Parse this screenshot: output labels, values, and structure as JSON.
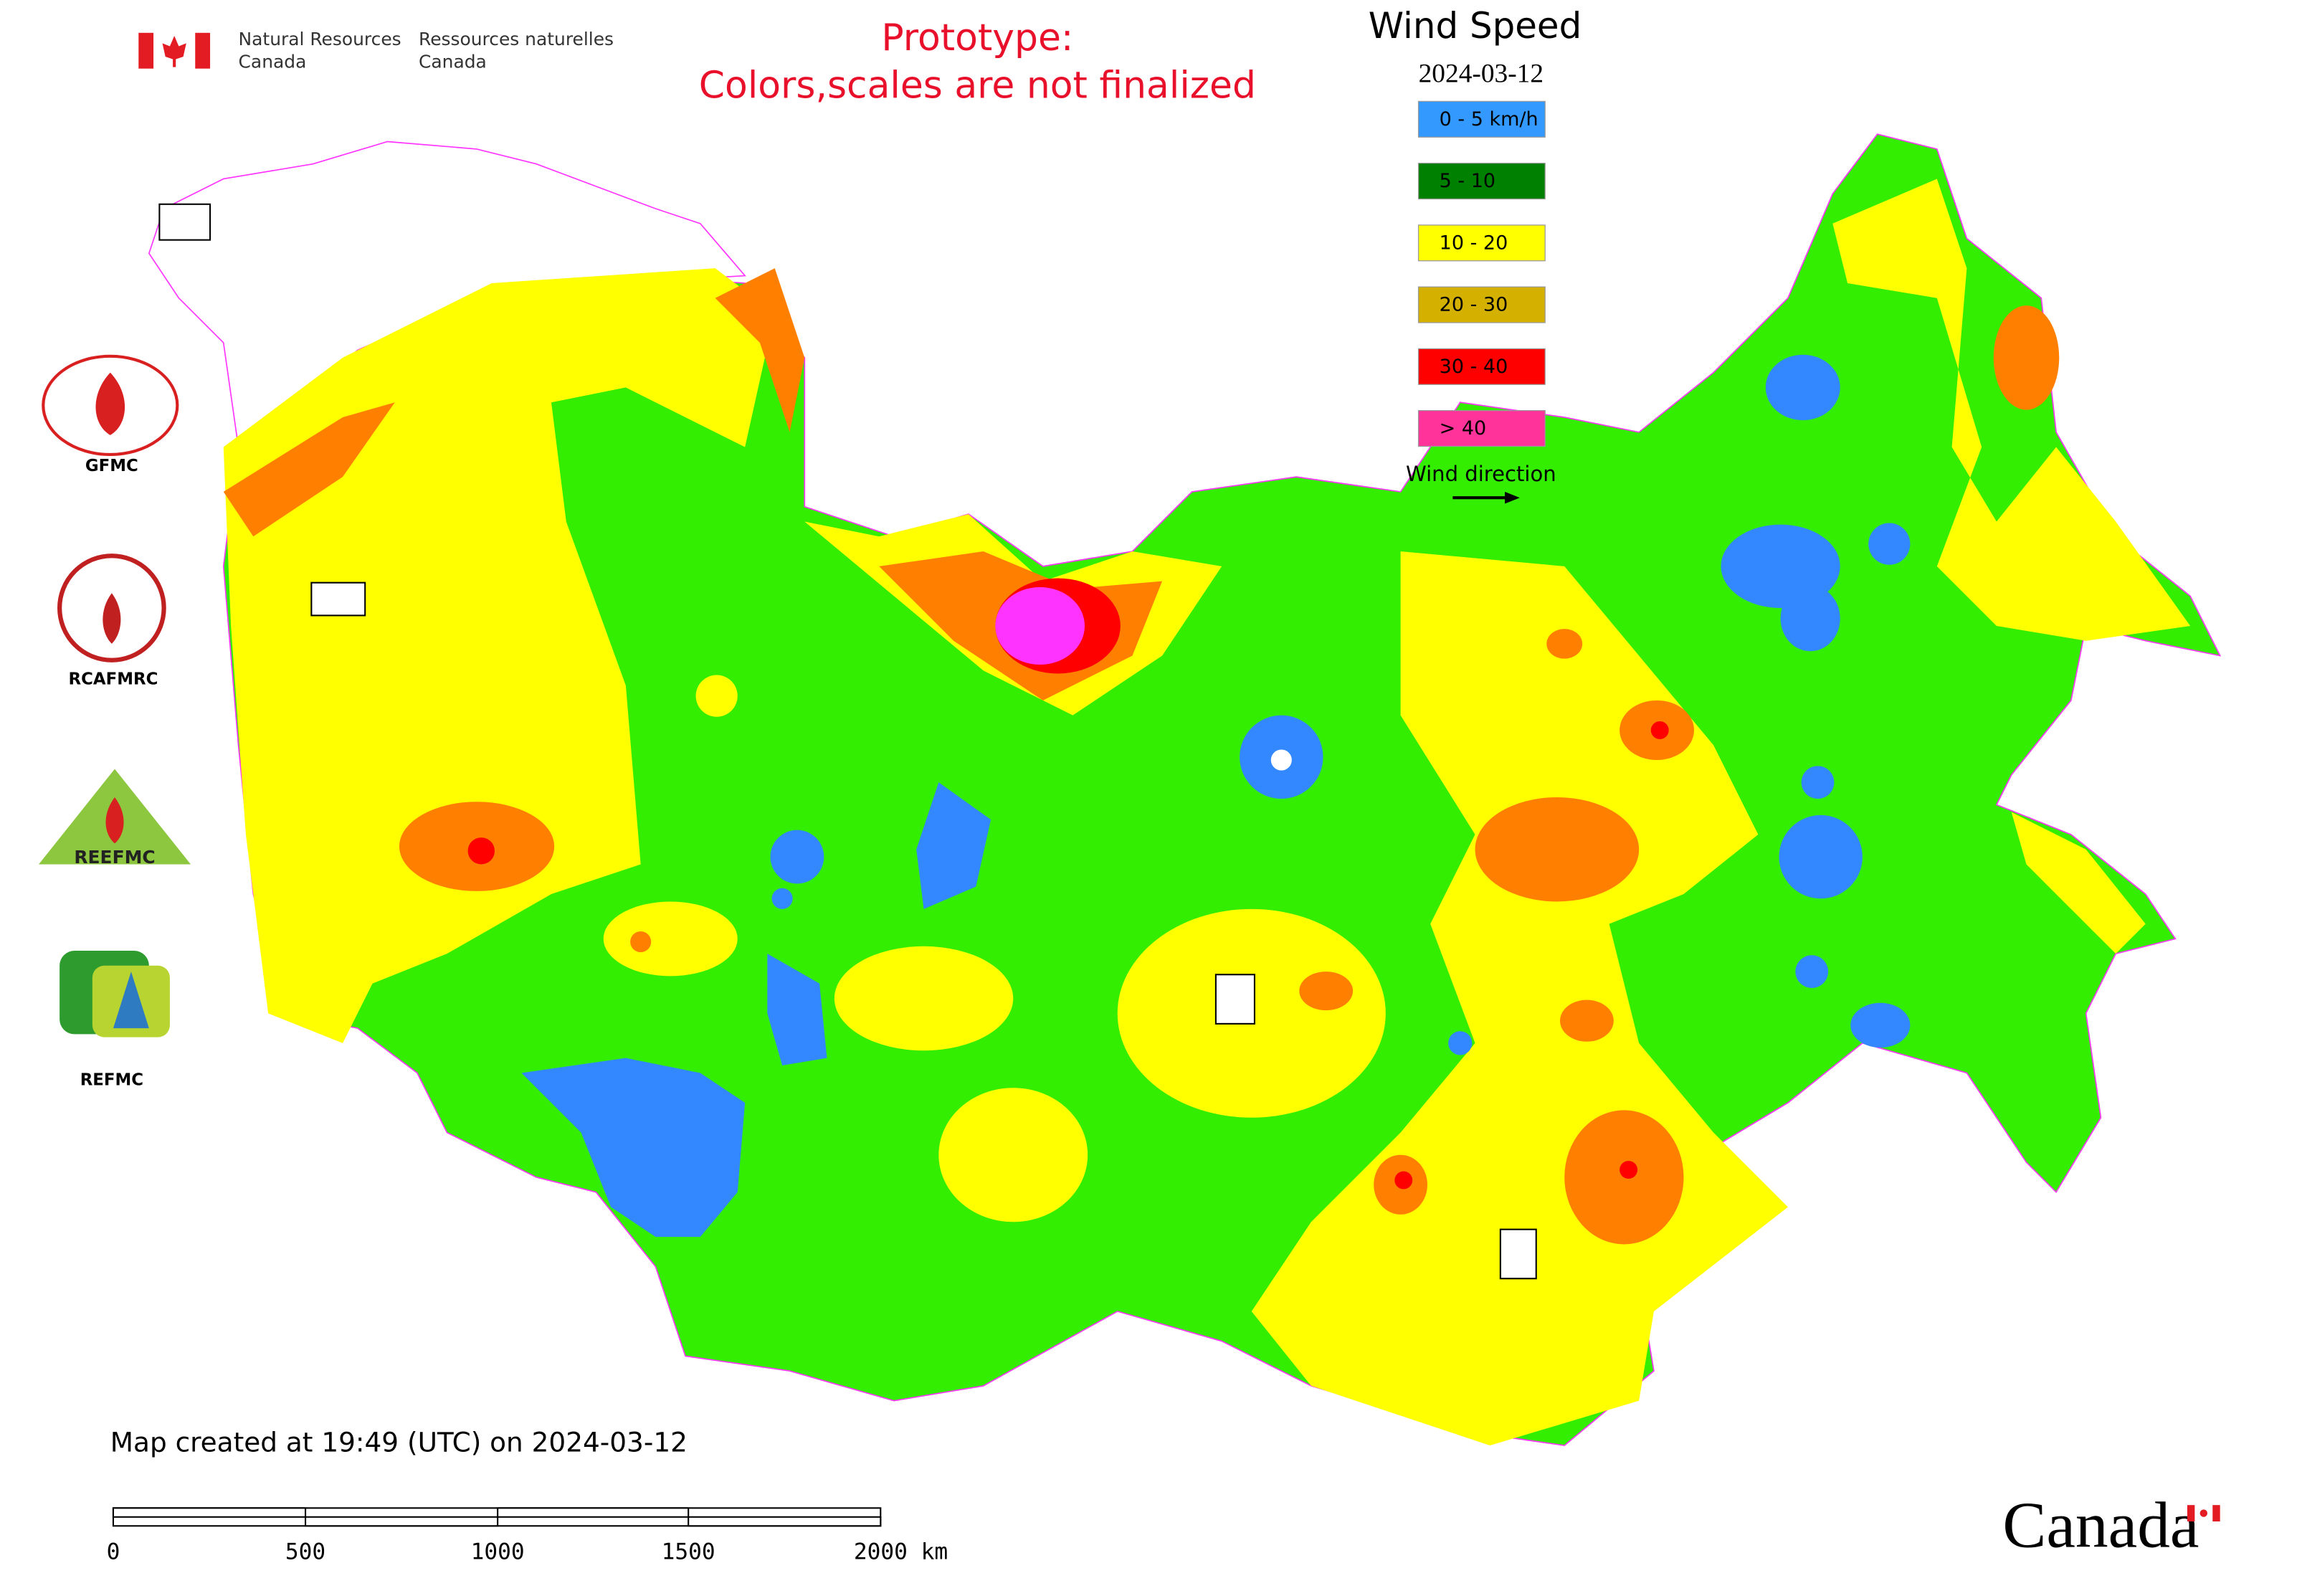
{
  "header": {
    "org_en_1": "Natural Resources",
    "org_en_2": "Canada",
    "org_fr_1": "Ressources naturelles",
    "org_fr_2": "Canada"
  },
  "notice": [
    "Prototype:",
    "Colors,scales are not finalized"
  ],
  "legend": {
    "title": "Wind Speed",
    "date": "2024-03-12",
    "items": [
      {
        "label": "0 - 5 km/h",
        "color": "#3399ff"
      },
      {
        "label": "5 - 10",
        "color": "#008000"
      },
      {
        "label": "10 - 20",
        "color": "#ffff00"
      },
      {
        "label": "20 - 30",
        "color": "#d4b000"
      },
      {
        "label": "30 - 40",
        "color": "#ff0000"
      },
      {
        "label": "> 40",
        "color": "#ff3399"
      }
    ],
    "direction_label": "Wind direction"
  },
  "centers": [
    "GFMC",
    "RCAFMRC",
    "REFMC"
  ],
  "reefmc_logo": "REEFMC",
  "footer": {
    "created": "Map created at 19:49 (UTC) on 2024-03-12",
    "scale_labels": [
      "0",
      "500",
      "1000",
      "1500",
      "2000 km"
    ],
    "wordmark": "Canada"
  }
}
